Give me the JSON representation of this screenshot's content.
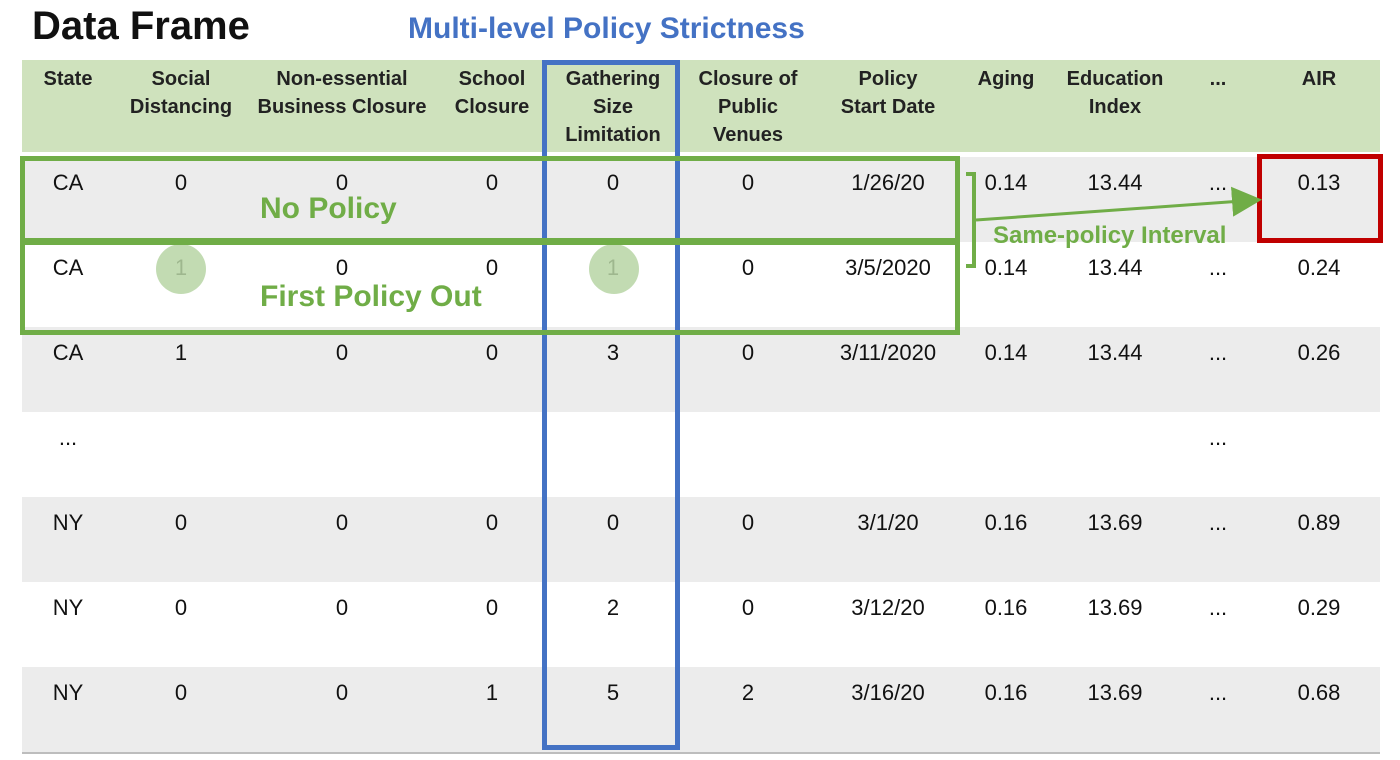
{
  "title": "Data Frame",
  "subtitle": "Multi-level Policy Strictness",
  "columns": [
    "State",
    "Social\nDistancing",
    "Non-essential\nBusiness Closure",
    "School\nClosure",
    "Gathering\nSize\nLimitation",
    "Closure of\nPublic\nVenues",
    "Policy\nStart Date",
    "Aging",
    "Education\nIndex",
    "...",
    "AIR"
  ],
  "rows": [
    [
      "CA",
      "0",
      "0",
      "0",
      "0",
      "0",
      "1/26/20",
      "0.14",
      "13.44",
      "...",
      "0.13"
    ],
    [
      "CA",
      "1",
      "0",
      "0",
      "1",
      "0",
      "3/5/2020",
      "0.14",
      "13.44",
      "...",
      "0.24"
    ],
    [
      "CA",
      "1",
      "0",
      "0",
      "3",
      "0",
      "3/11/2020",
      "0.14",
      "13.44",
      "...",
      "0.26"
    ],
    [
      "...",
      "",
      "",
      "",
      "",
      "",
      "",
      "",
      "",
      "...",
      ""
    ],
    [
      "NY",
      "0",
      "0",
      "0",
      "0",
      "0",
      "3/1/20",
      "0.16",
      "13.69",
      "...",
      "0.89"
    ],
    [
      "NY",
      "0",
      "0",
      "0",
      "2",
      "0",
      "3/12/20",
      "0.16",
      "13.69",
      "...",
      "0.29"
    ],
    [
      "NY",
      "0",
      "0",
      "1",
      "5",
      "2",
      "3/16/20",
      "0.16",
      "13.69",
      "...",
      "0.68"
    ]
  ],
  "annotations": {
    "no_policy": "No Policy",
    "first_policy_out": "First Policy Out",
    "same_policy_interval": "Same-policy Interval"
  },
  "colors": {
    "header_bg": "#cfe2bd",
    "row_shade": "#ececec",
    "blue": "#4472c4",
    "green": "#70ad47",
    "red": "#c00000"
  }
}
